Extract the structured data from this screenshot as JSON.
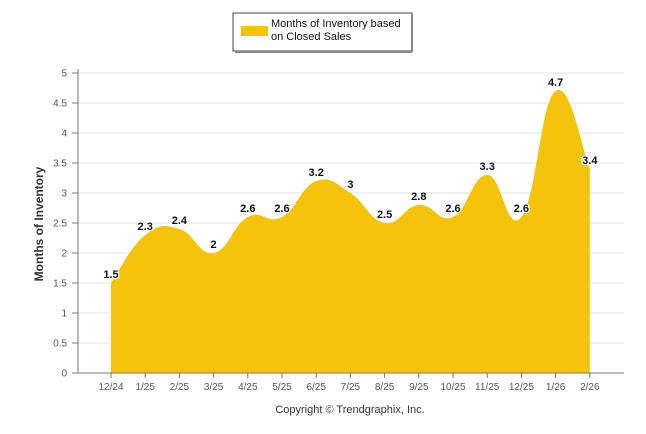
{
  "chart_data": {
    "type": "area",
    "title": "",
    "xlabel": "",
    "ylabel": "Months of Inventory",
    "ylim": [
      0,
      5
    ],
    "yticks": [
      "0",
      "0.5",
      "1",
      "1.5",
      "2",
      "2.5",
      "3",
      "3.5",
      "4",
      "4.5",
      "5"
    ],
    "categories": [
      "12/24",
      "1/25",
      "2/25",
      "3/25",
      "4/25",
      "5/25",
      "6/25",
      "7/25",
      "8/25",
      "9/25",
      "10/25",
      "11/25",
      "12/25",
      "1/26",
      "2/26"
    ],
    "series": [
      {
        "name": "Months of Inventory based on Closed Sales",
        "values": [
          1.5,
          2.3,
          2.4,
          2,
          2.6,
          2.6,
          3.2,
          3,
          2.5,
          2.8,
          2.6,
          3.3,
          2.6,
          4.7,
          3.4
        ],
        "labels": [
          "1.5",
          "2.3",
          "2.4",
          "2",
          "2.6",
          "2.6",
          "3.2",
          "3",
          "2.5",
          "2.8",
          "2.6",
          "3.3",
          "2.6",
          "4.7",
          "3.4"
        ],
        "color": "#f5c20c"
      }
    ],
    "legend": {
      "line1": "Months of Inventory based",
      "line2": "on Closed Sales",
      "placement": "top-center"
    },
    "grid": true,
    "gridColor": "#e3e3e3",
    "copyright": "Copyright © Trendgraphix, Inc."
  }
}
